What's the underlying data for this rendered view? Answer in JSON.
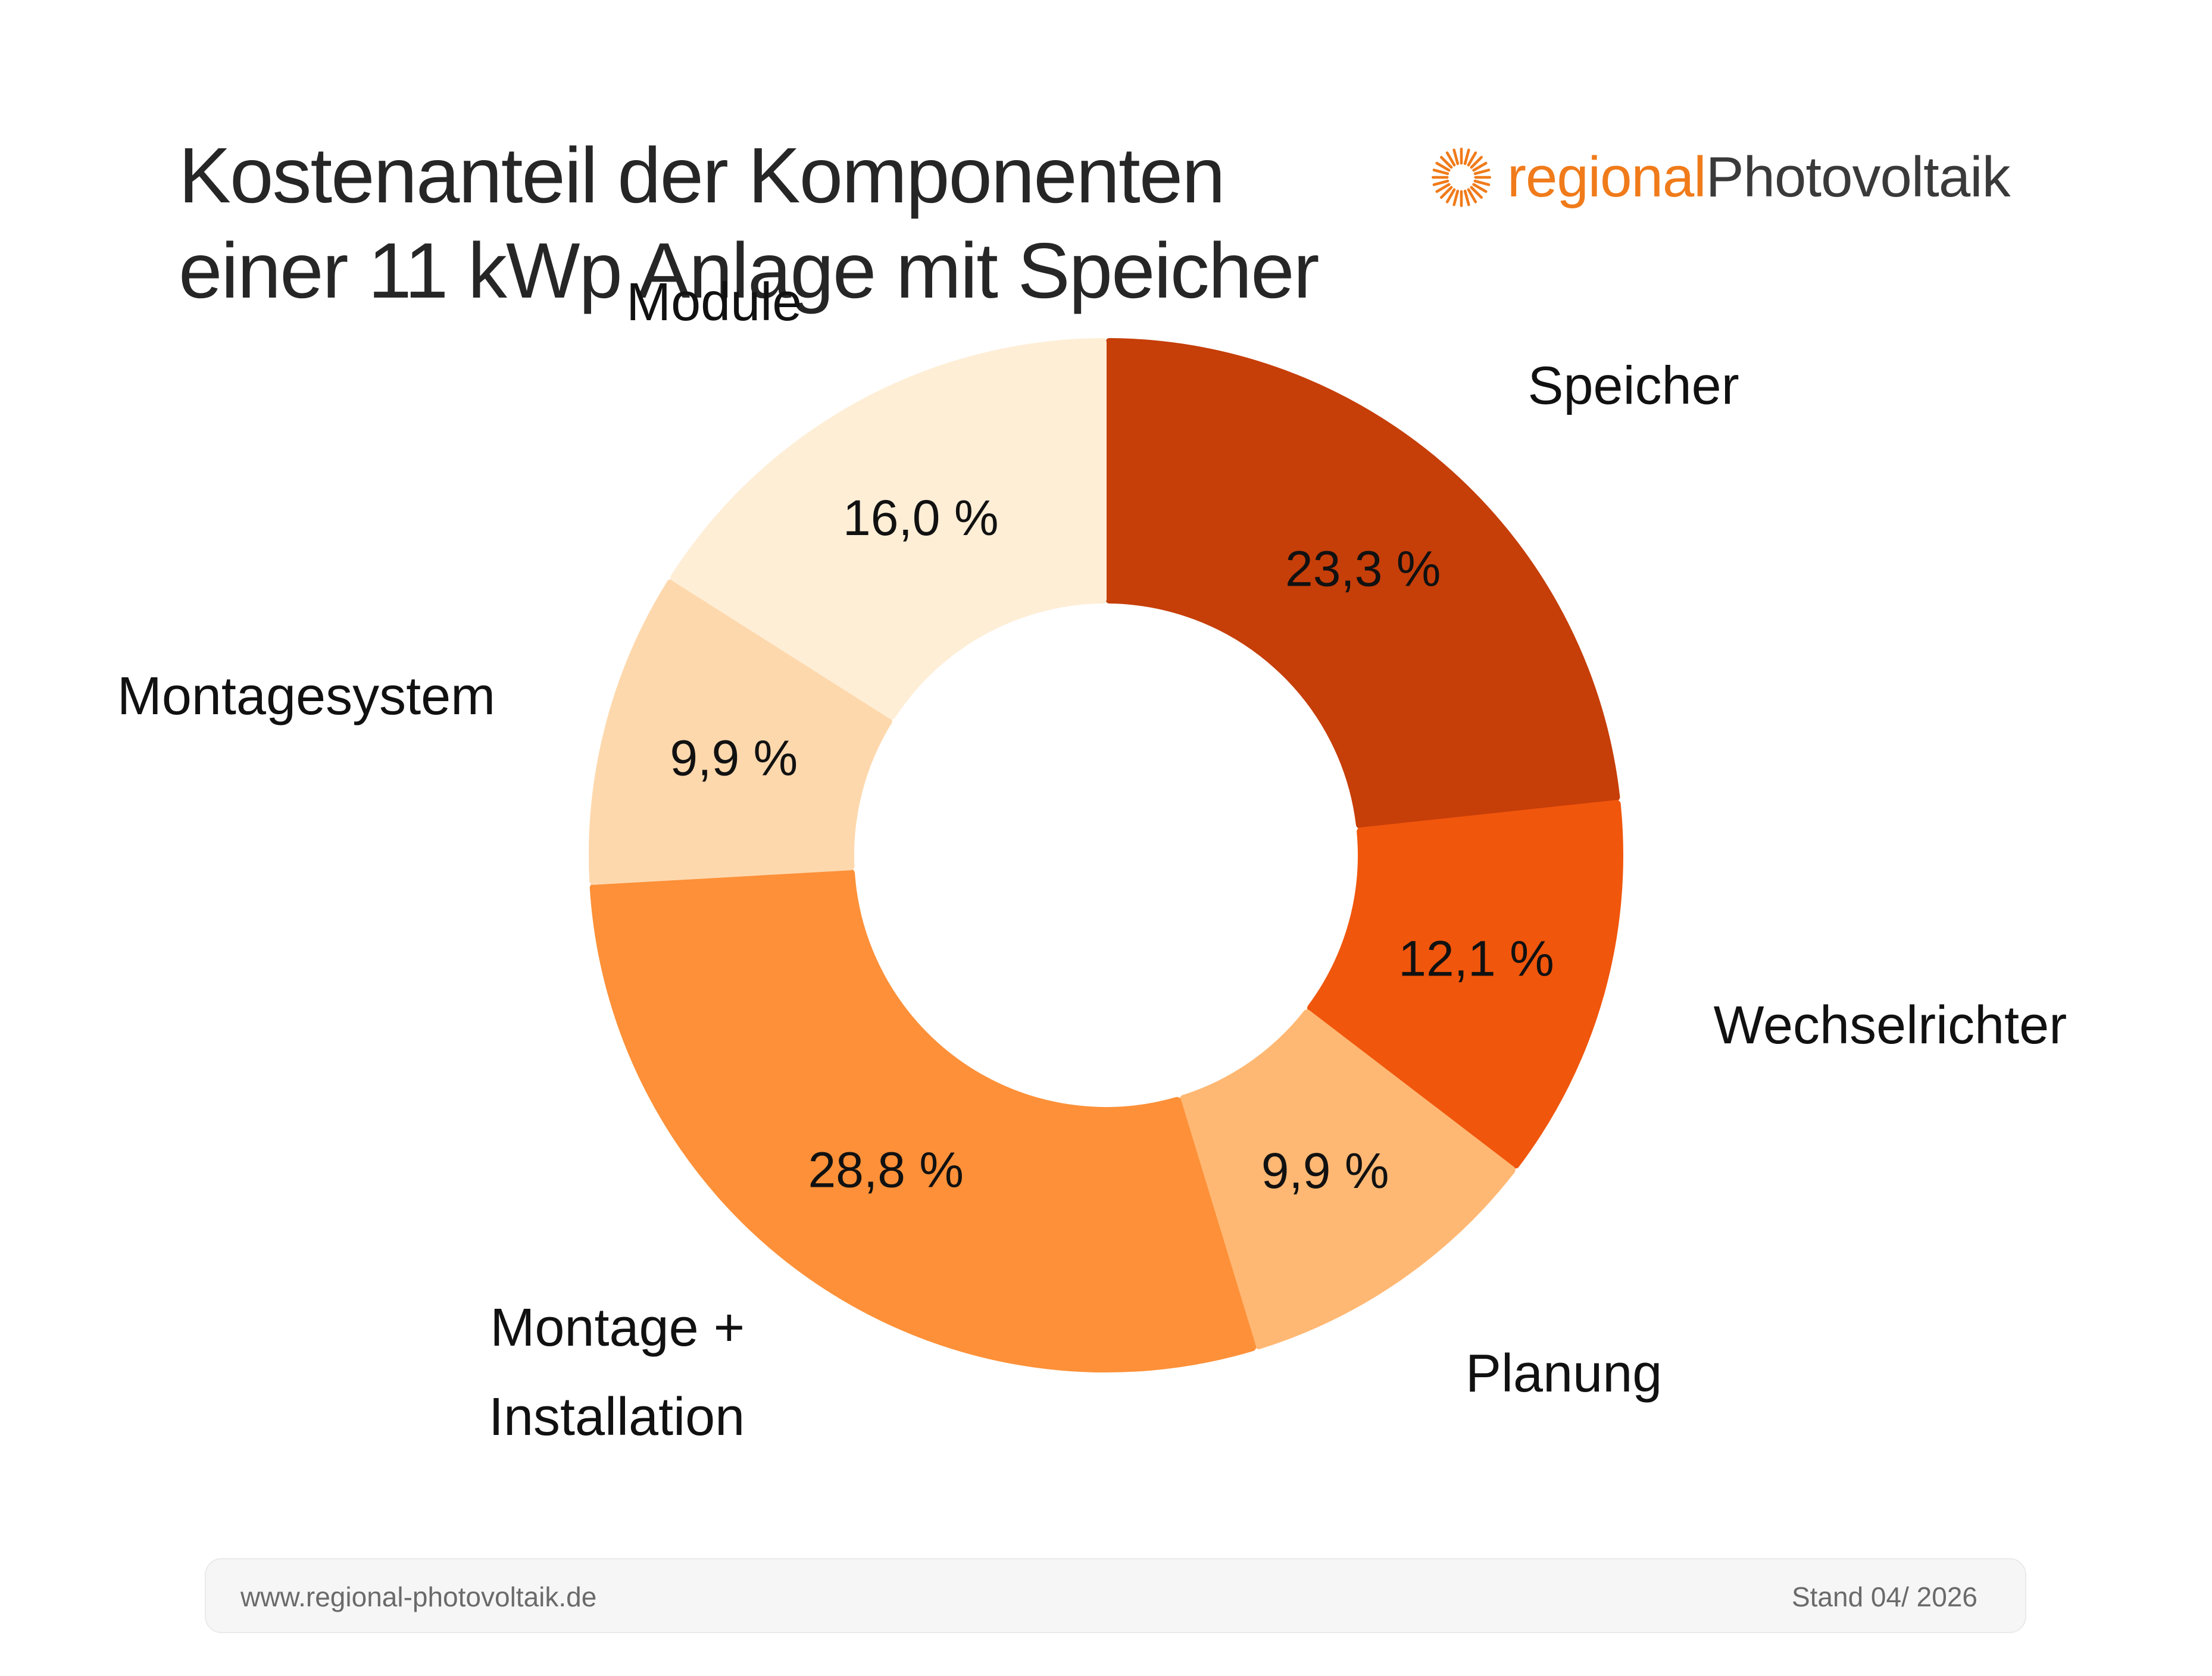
{
  "title": {
    "line1": "Kostenanteil der Komponenten",
    "line2": "einer 11 kWp Anlage mit Speicher"
  },
  "logo": {
    "regional": "regional",
    "photovoltaik": "Photovoltaik",
    "icon": "sun-icon"
  },
  "footer": {
    "url": "www.regional-photovoltaik.de",
    "date": "Stand 04/ 2026"
  },
  "chart_data": {
    "type": "pie",
    "subtype": "donut",
    "slices": [
      {
        "name": "Speicher",
        "value": 23.3,
        "label": "23,3 %",
        "color": "#c63e08",
        "label_lines": [
          "Speicher"
        ]
      },
      {
        "name": "Wechselrichter",
        "value": 12.1,
        "label": "12,1 %",
        "color": "#f0560c",
        "label_lines": [
          "Wechselrichter"
        ]
      },
      {
        "name": "Planung",
        "value": 9.9,
        "label": "9,9 %",
        "color": "#ffb873",
        "label_lines": [
          "Planung"
        ]
      },
      {
        "name": "Montage + Installation",
        "value": 28.8,
        "label": "28,8 %",
        "color": "#fd9038",
        "label_lines": [
          "Montage +",
          "Installation"
        ]
      },
      {
        "name": "Montagesystem",
        "value": 9.9,
        "label": "9,9 %",
        "color": "#fed8ad",
        "label_lines": [
          "Montagesystem"
        ]
      },
      {
        "name": "Module",
        "value": 16.0,
        "label": "16,0 %",
        "color": "#feeed6",
        "label_lines": [
          "Module"
        ]
      }
    ]
  }
}
